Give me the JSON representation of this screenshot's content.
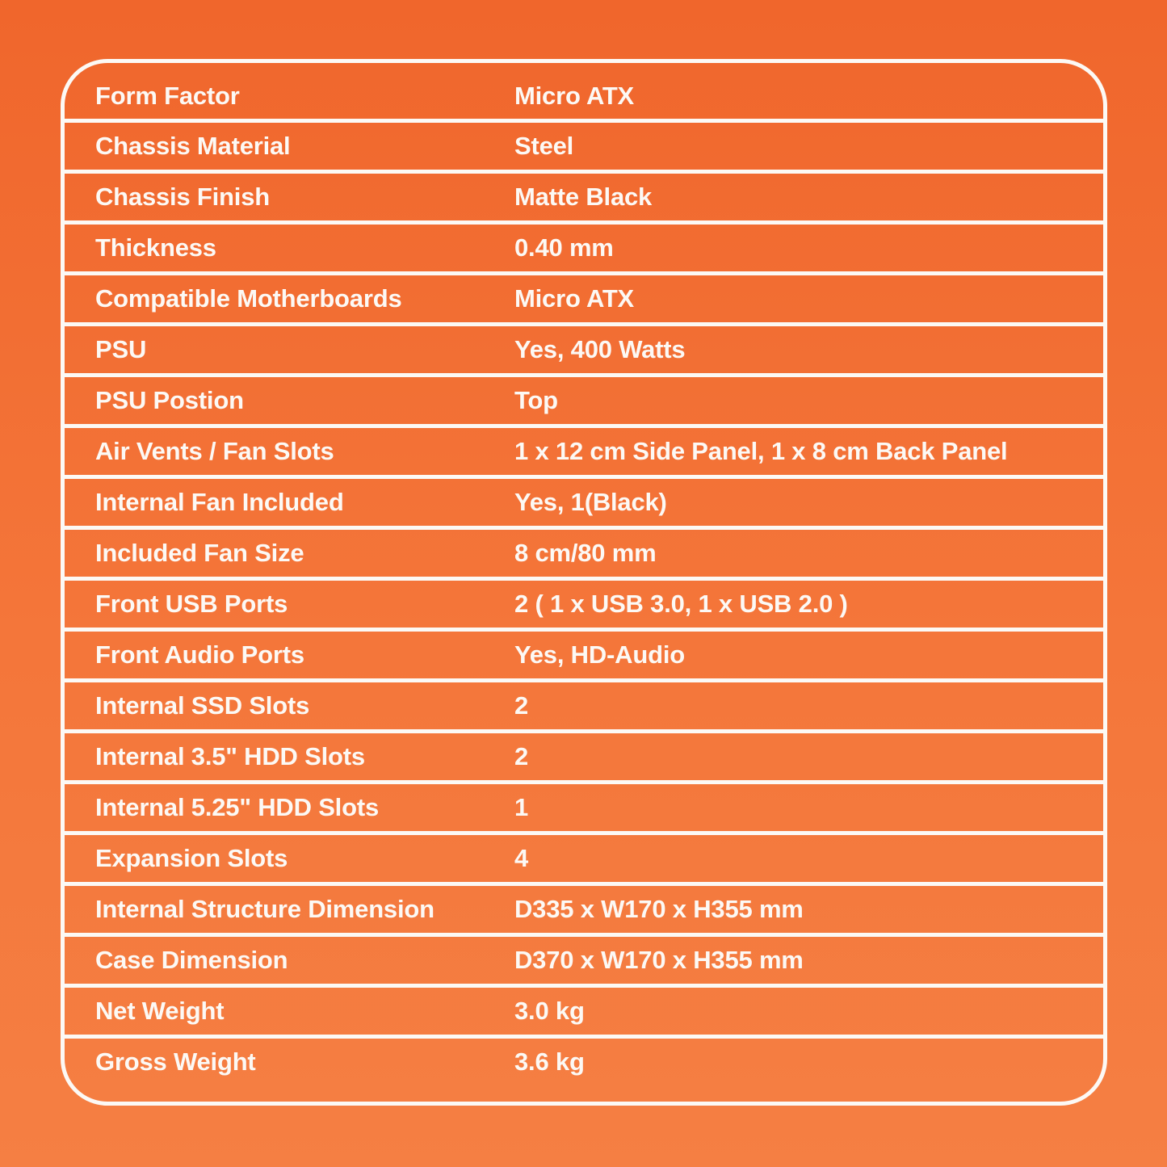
{
  "page": {
    "background_top": "#F0662C",
    "background_mid": "#F4763A",
    "background_bottom": "#F57F43",
    "line_color": "#FCF9F5",
    "text_color": "#FCF9F5"
  },
  "table": {
    "rows": [
      {
        "label": "Form Factor",
        "value": "Micro ATX"
      },
      {
        "label": "Chassis Material",
        "value": "Steel"
      },
      {
        "label": "Chassis Finish",
        "value": "Matte Black"
      },
      {
        "label": "Thickness",
        "value": "0.40 mm"
      },
      {
        "label": "Compatible Motherboards",
        "value": "Micro ATX"
      },
      {
        "label": "PSU",
        "value": "Yes, 400 Watts"
      },
      {
        "label": "PSU Postion",
        "value": "Top"
      },
      {
        "label": "Air Vents / Fan Slots",
        "value": "1 x 12 cm Side Panel, 1 x 8 cm Back Panel"
      },
      {
        "label": "Internal Fan Included",
        "value": "Yes, 1(Black)"
      },
      {
        "label": "Included Fan Size",
        "value": "8 cm/80 mm"
      },
      {
        "label": "Front USB Ports",
        "value": "2 ( 1 x USB 3.0, 1 x USB 2.0 )"
      },
      {
        "label": "Front Audio Ports",
        "value": "Yes, HD-Audio"
      },
      {
        "label": "Internal SSD Slots",
        "value": "2"
      },
      {
        "label": "Internal 3.5\" HDD Slots",
        "value": "2"
      },
      {
        "label": "Internal 5.25\" HDD Slots",
        "value": "1"
      },
      {
        "label": "Expansion Slots",
        "value": "4"
      },
      {
        "label": "Internal Structure Dimension",
        "value": "D335 x W170 x H355 mm"
      },
      {
        "label": "Case Dimension",
        "value": "D370 x W170 x H355 mm"
      },
      {
        "label": "Net Weight",
        "value": "3.0 kg"
      },
      {
        "label": "Gross Weight",
        "value": "3.6 kg"
      }
    ]
  }
}
